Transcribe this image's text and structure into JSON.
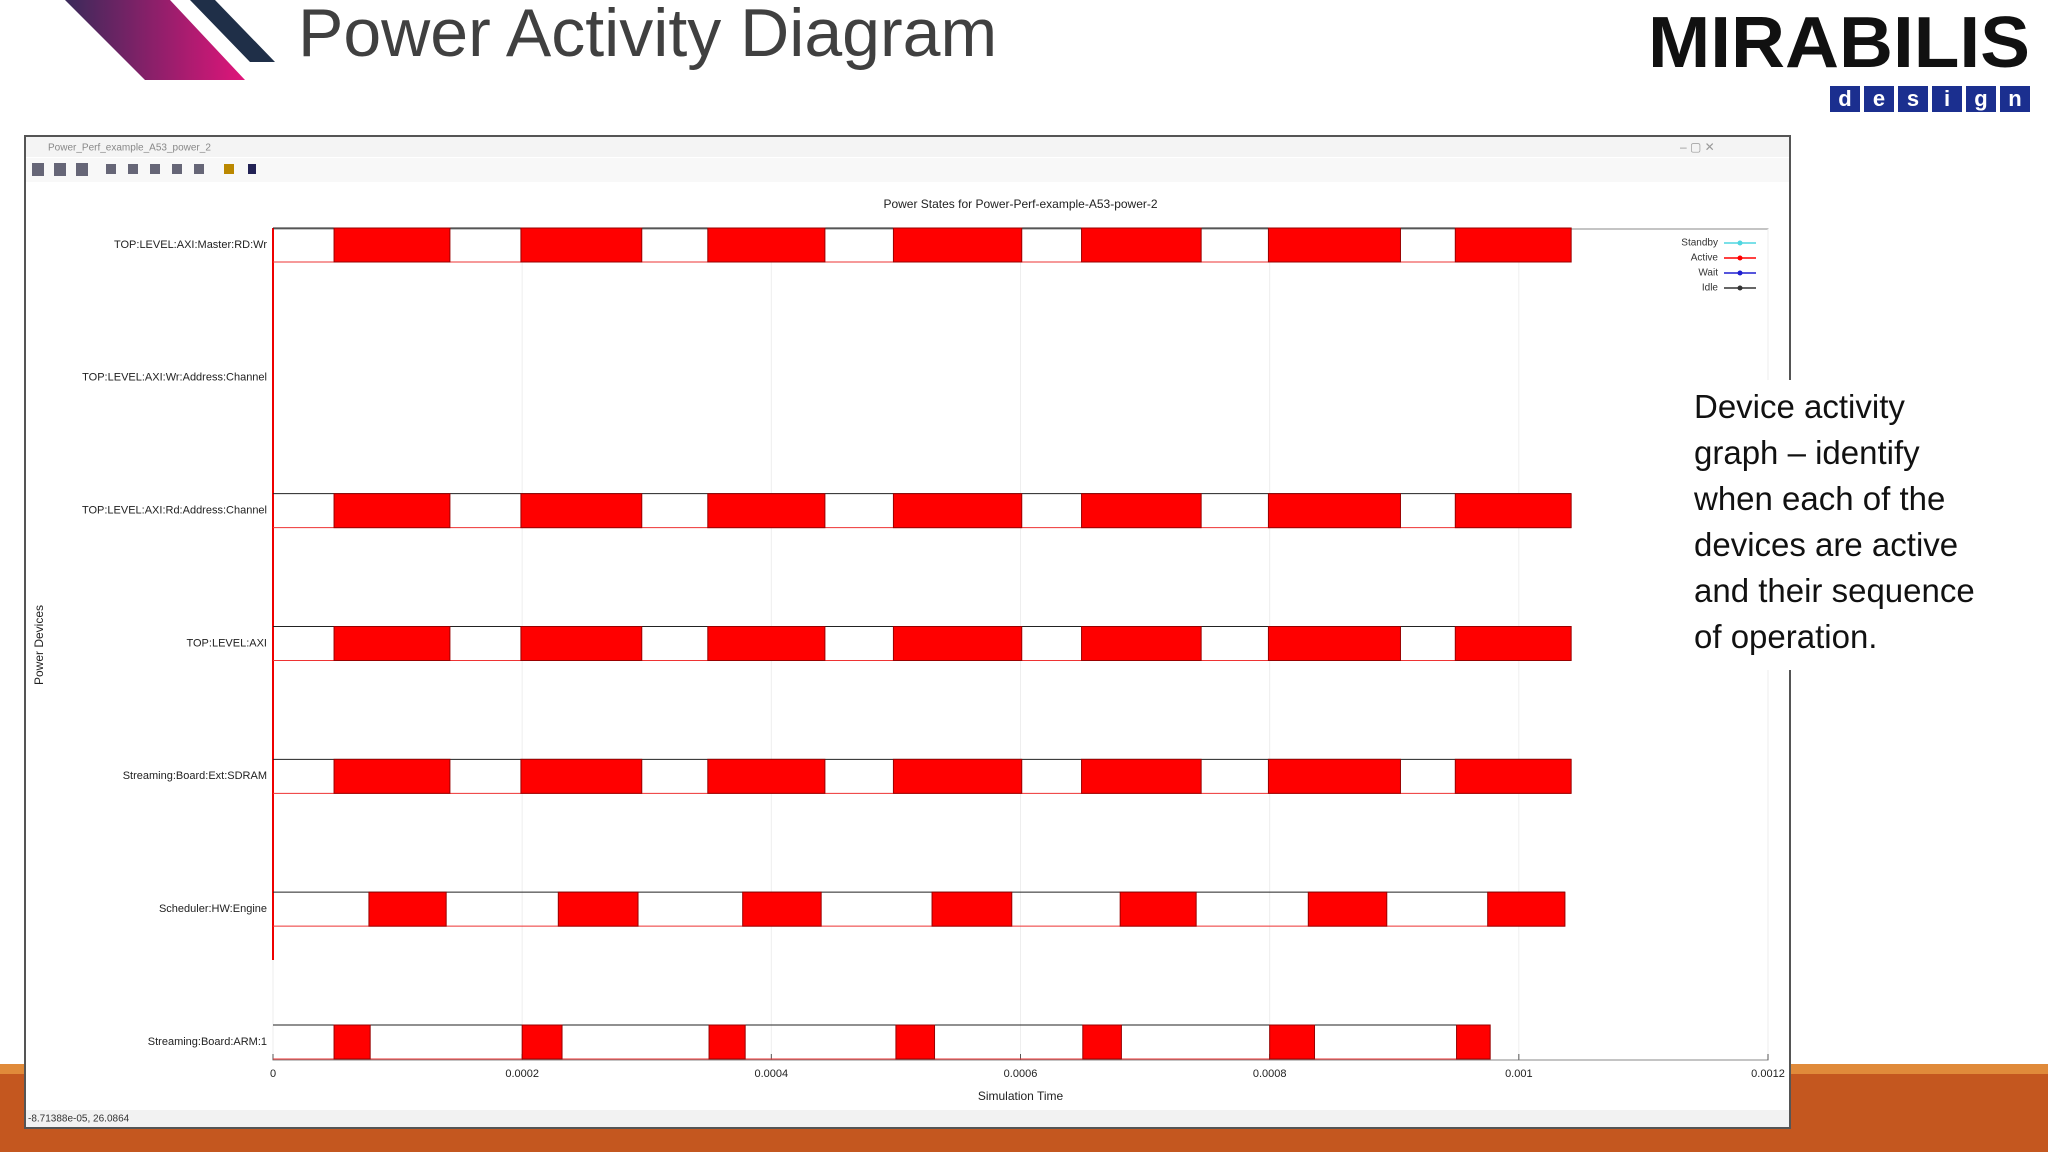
{
  "slide": {
    "title": "Power Activity Diagram",
    "logo": {
      "name": "MIRABILIS",
      "letters": [
        "d",
        "e",
        "s",
        "i",
        "g",
        "n"
      ]
    },
    "note": "Device activity graph – identify when each of the devices are active and their sequence of operation."
  },
  "window": {
    "title": "Power_Perf_example_A53_power_2",
    "status": "-8.71388e-05, 26.0864"
  },
  "chart_data": {
    "type": "timeline",
    "title": "Power States for Power-Perf-example-A53-power-2",
    "xlabel": "Simulation Time",
    "ylabel": "Power Devices",
    "categories": [
      "TOP:LEVEL:AXI:Master:RD:Wr",
      "TOP:LEVEL:AXI:Wr:Address:Channel",
      "TOP:LEVEL:AXI:Rd:Address:Channel",
      "TOP:LEVEL:AXI",
      "Streaming:Board:Ext:SDRAM",
      "Scheduler:HW:Engine",
      "Streaming:Board:ARM:1"
    ],
    "series": [
      {
        "name": "Standby",
        "color": "#4fd6e0"
      },
      {
        "name": "Active",
        "color": "#ff0000"
      },
      {
        "name": "Wait",
        "color": "#1f1fd0"
      },
      {
        "name": "Idle",
        "color": "#333333"
      }
    ],
    "active": [
      [
        [
          4.9e-05,
          0.000142
        ],
        [
          0.000199,
          0.000296
        ],
        [
          0.000349,
          0.000443
        ],
        [
          0.000498,
          0.000601
        ],
        [
          0.000649,
          0.000745
        ],
        [
          0.000799,
          0.000905
        ],
        [
          0.000949,
          0.001042
        ]
      ],
      [],
      [
        [
          4.9e-05,
          0.000142
        ],
        [
          0.000199,
          0.000296
        ],
        [
          0.000349,
          0.000443
        ],
        [
          0.000498,
          0.000601
        ],
        [
          0.000649,
          0.000745
        ],
        [
          0.000799,
          0.000905
        ],
        [
          0.000949,
          0.001042
        ]
      ],
      [
        [
          4.9e-05,
          0.000142
        ],
        [
          0.000199,
          0.000296
        ],
        [
          0.000349,
          0.000443
        ],
        [
          0.000498,
          0.000601
        ],
        [
          0.000649,
          0.000745
        ],
        [
          0.000799,
          0.000905
        ],
        [
          0.000949,
          0.001042
        ]
      ],
      [
        [
          4.9e-05,
          0.000142
        ],
        [
          0.000199,
          0.000296
        ],
        [
          0.000349,
          0.000443
        ],
        [
          0.000498,
          0.000601
        ],
        [
          0.000649,
          0.000745
        ],
        [
          0.000799,
          0.000905
        ],
        [
          0.000949,
          0.001042
        ]
      ],
      [
        [
          7.7e-05,
          0.000139
        ],
        [
          0.000229,
          0.000293
        ],
        [
          0.000377,
          0.00044
        ],
        [
          0.000529,
          0.000593
        ],
        [
          0.00068,
          0.000741
        ],
        [
          0.000831,
          0.000894
        ],
        [
          0.000975,
          0.001037
        ]
      ],
      [
        [
          4.9e-05,
          7.8e-05
        ],
        [
          0.0002,
          0.000232
        ],
        [
          0.00035,
          0.000379
        ],
        [
          0.0005,
          0.000531
        ],
        [
          0.00065,
          0.000681
        ],
        [
          0.0008,
          0.000836
        ],
        [
          0.00095,
          0.000977
        ]
      ]
    ],
    "xlim": [
      0,
      0.0012
    ],
    "xticks": [
      0,
      0.0002,
      0.0004,
      0.0006,
      0.0008,
      0.001,
      0.0012
    ],
    "grid": true,
    "legend": "top-right"
  }
}
